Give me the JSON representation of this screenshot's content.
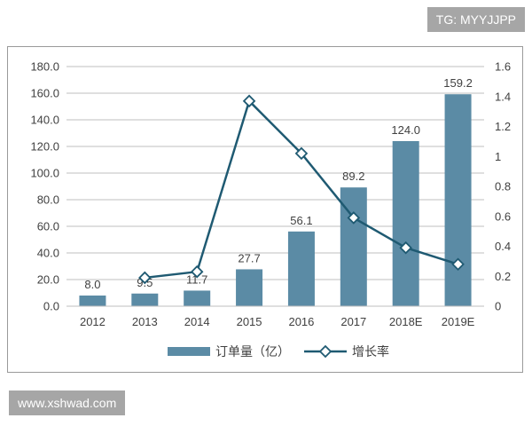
{
  "watermark_tag": "TG: MYYJJPP",
  "watermark_site": "www.xshwad.com",
  "colors": {
    "bar": "#5b8ba5",
    "line": "#1f5a72",
    "axis": "#bfbfbf",
    "text": "#404040"
  },
  "chart_data": {
    "type": "bar",
    "categories": [
      "2012",
      "2013",
      "2014",
      "2015",
      "2016",
      "2017",
      "2018E",
      "2019E"
    ],
    "series": [
      {
        "name": "订单量（亿）",
        "type": "bar",
        "axis": "left",
        "values": [
          8.0,
          9.5,
          11.7,
          27.7,
          56.1,
          89.2,
          124.0,
          159.2
        ],
        "labels": [
          "8.0",
          "9.5",
          "11.7",
          "27.7",
          "56.1",
          "89.2",
          "124.0",
          "159.2"
        ]
      },
      {
        "name": "增长率",
        "type": "line",
        "axis": "right",
        "values": [
          null,
          0.19,
          0.23,
          1.37,
          1.02,
          0.59,
          0.39,
          0.28
        ]
      }
    ],
    "y_left": {
      "min": 0,
      "max": 180,
      "step": 20,
      "ticks": [
        "0.0",
        "20.0",
        "40.0",
        "60.0",
        "80.0",
        "100.0",
        "120.0",
        "140.0",
        "160.0",
        "180.0"
      ]
    },
    "y_right": {
      "min": 0,
      "max": 1.6,
      "step": 0.2,
      "ticks": [
        "0",
        "0.2",
        "0.4",
        "0.6",
        "0.8",
        "1",
        "1.2",
        "1.4",
        "1.6"
      ]
    },
    "legend": [
      {
        "label": "订单量（亿）",
        "marker": "bar"
      },
      {
        "label": "增长率",
        "marker": "line-diamond"
      }
    ],
    "legend_position": "bottom",
    "grid": true
  }
}
